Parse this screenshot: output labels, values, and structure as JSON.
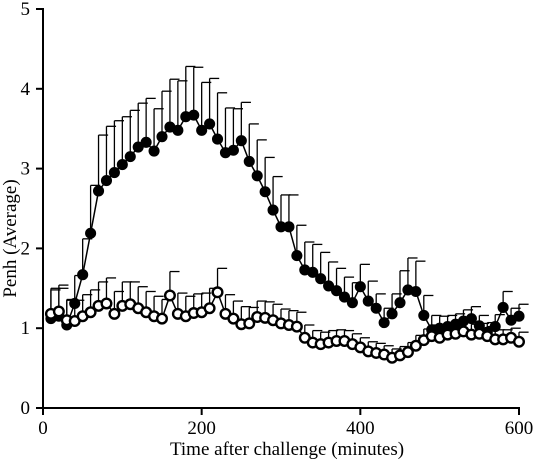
{
  "chart_data": {
    "type": "line",
    "title": "",
    "xlabel": "Time after challenge (minutes)",
    "ylabel": "Penh (Average)",
    "xlim": [
      0,
      600
    ],
    "ylim": [
      0,
      5
    ],
    "x_ticks": [
      0,
      200,
      400,
      600
    ],
    "y_ticks": [
      0,
      1,
      2,
      3,
      4,
      5
    ],
    "grid": false,
    "legend": "none",
    "series": [
      {
        "marker": "filled-circle",
        "color": "#000000",
        "x": [
          10,
          20,
          30,
          40,
          50,
          60,
          70,
          80,
          90,
          100,
          110,
          120,
          130,
          140,
          150,
          160,
          170,
          180,
          190,
          200,
          210,
          220,
          230,
          240,
          250,
          260,
          270,
          280,
          290,
          300,
          310,
          320,
          330,
          340,
          350,
          360,
          370,
          380,
          390,
          400,
          410,
          420,
          430,
          440,
          450,
          460,
          470,
          480,
          490,
          500,
          510,
          520,
          530,
          540,
          550,
          560,
          570,
          580,
          590,
          600
        ],
        "y": [
          1.12,
          1.15,
          1.04,
          1.31,
          1.67,
          2.19,
          2.72,
          2.85,
          2.95,
          3.05,
          3.15,
          3.27,
          3.33,
          3.22,
          3.4,
          3.52,
          3.48,
          3.65,
          3.67,
          3.48,
          3.56,
          3.37,
          3.2,
          3.23,
          3.35,
          3.09,
          2.91,
          2.71,
          2.48,
          2.27,
          2.27,
          1.91,
          1.73,
          1.7,
          1.62,
          1.53,
          1.47,
          1.39,
          1.32,
          1.52,
          1.34,
          1.25,
          1.07,
          1.18,
          1.32,
          1.48,
          1.46,
          1.16,
          0.98,
          1.0,
          1.02,
          1.05,
          1.09,
          1.12,
          1.03,
          0.95,
          1.02,
          1.26,
          1.1,
          1.15
        ],
        "error": [
          0.38,
          0.35,
          0.32,
          0.35,
          0.45,
          0.6,
          0.7,
          0.68,
          0.65,
          0.6,
          0.58,
          0.55,
          0.55,
          0.53,
          0.57,
          0.6,
          0.62,
          0.63,
          0.6,
          0.6,
          0.57,
          0.58,
          0.56,
          0.52,
          0.48,
          0.47,
          0.45,
          0.43,
          0.42,
          0.4,
          0.4,
          0.38,
          0.35,
          0.35,
          0.33,
          0.3,
          0.28,
          0.25,
          0.25,
          0.28,
          0.25,
          0.18,
          0.18,
          0.25,
          0.4,
          0.4,
          0.38,
          0.25,
          0.18,
          0.15,
          0.14,
          0.13,
          0.14,
          0.15,
          0.13,
          0.12,
          0.15,
          0.2,
          0.15,
          0.15
        ]
      },
      {
        "marker": "open-circle",
        "color": "#000000",
        "x": [
          10,
          20,
          30,
          40,
          50,
          60,
          70,
          80,
          90,
          100,
          110,
          120,
          130,
          140,
          150,
          160,
          170,
          180,
          190,
          200,
          210,
          220,
          230,
          240,
          250,
          260,
          270,
          280,
          290,
          300,
          310,
          320,
          330,
          340,
          350,
          360,
          370,
          380,
          390,
          400,
          410,
          420,
          430,
          440,
          450,
          460,
          470,
          480,
          490,
          500,
          510,
          520,
          530,
          540,
          550,
          560,
          570,
          580,
          590,
          600
        ],
        "y": [
          1.18,
          1.21,
          1.1,
          1.09,
          1.15,
          1.2,
          1.28,
          1.31,
          1.18,
          1.28,
          1.3,
          1.25,
          1.2,
          1.15,
          1.12,
          1.41,
          1.18,
          1.15,
          1.19,
          1.2,
          1.25,
          1.45,
          1.18,
          1.12,
          1.05,
          1.06,
          1.14,
          1.13,
          1.1,
          1.06,
          1.04,
          1.02,
          0.88,
          0.82,
          0.8,
          0.82,
          0.84,
          0.84,
          0.8,
          0.76,
          0.71,
          0.69,
          0.67,
          0.63,
          0.66,
          0.7,
          0.78,
          0.85,
          0.9,
          0.88,
          0.92,
          0.93,
          0.96,
          0.92,
          0.93,
          0.9,
          0.86,
          0.86,
          0.88,
          0.83
        ],
        "error": [
          0.3,
          0.33,
          0.25,
          0.26,
          0.27,
          0.28,
          0.3,
          0.32,
          0.28,
          0.3,
          0.28,
          0.27,
          0.26,
          0.25,
          0.24,
          0.3,
          0.26,
          0.25,
          0.24,
          0.24,
          0.25,
          0.3,
          0.24,
          0.22,
          0.22,
          0.2,
          0.2,
          0.2,
          0.2,
          0.18,
          0.18,
          0.18,
          0.16,
          0.15,
          0.15,
          0.15,
          0.14,
          0.13,
          0.13,
          0.12,
          0.12,
          0.12,
          0.11,
          0.11,
          0.11,
          0.12,
          0.13,
          0.14,
          0.14,
          0.14,
          0.14,
          0.14,
          0.14,
          0.13,
          0.13,
          0.12,
          0.12,
          0.12,
          0.12,
          0.12
        ]
      }
    ]
  }
}
